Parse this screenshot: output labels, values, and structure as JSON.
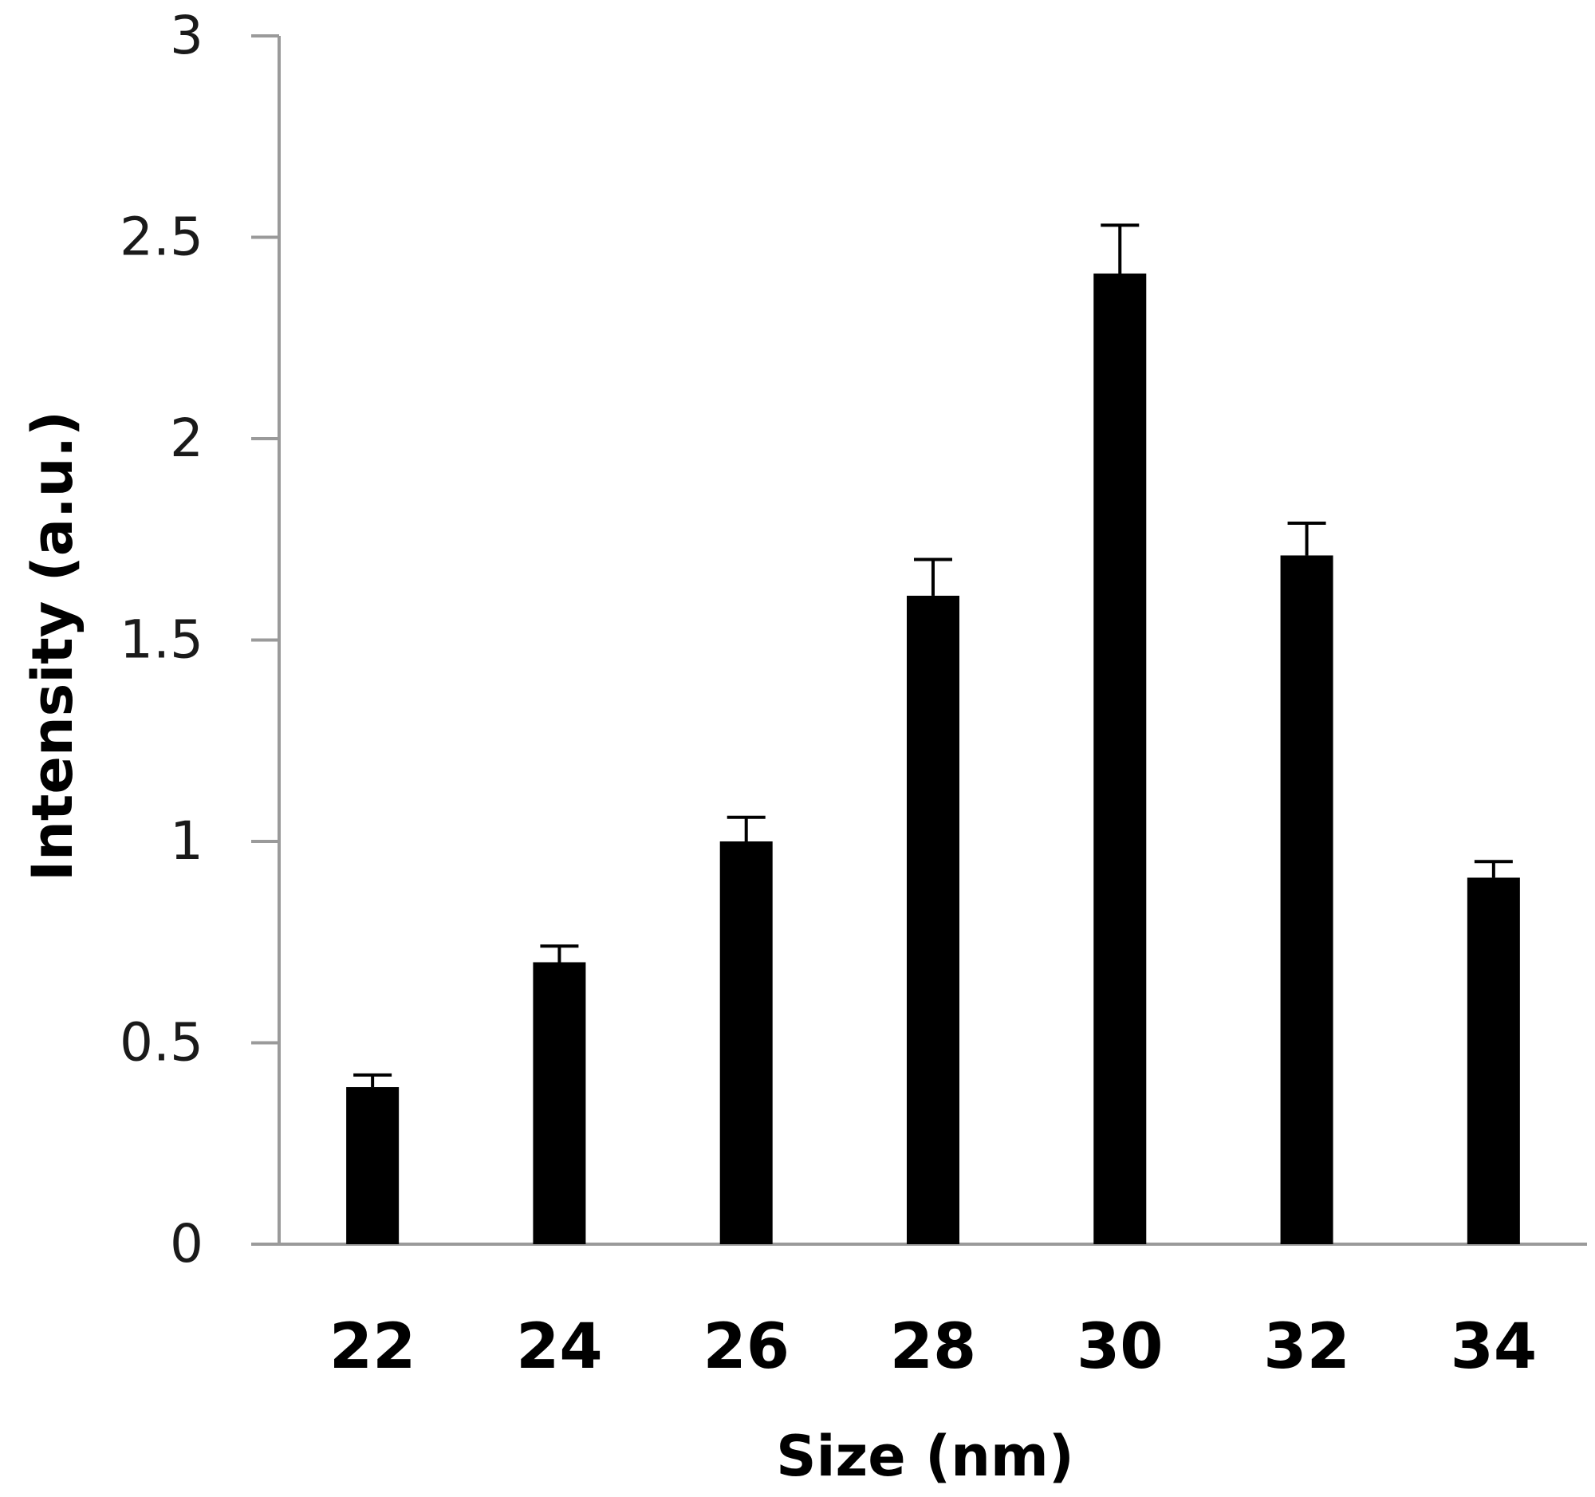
{
  "chart_data": {
    "type": "bar",
    "title": "",
    "xlabel": "Size (nm)",
    "ylabel": "Intensity (a.u.)",
    "categories": [
      "22",
      "24",
      "26",
      "28",
      "30",
      "32",
      "34"
    ],
    "series": [
      {
        "values": [
          0.39,
          0.7,
          1.0,
          1.61,
          2.41,
          1.71,
          0.91
        ],
        "error_plus": [
          0.03,
          0.04,
          0.06,
          0.09,
          0.12,
          0.08,
          0.04
        ]
      }
    ],
    "ylim": [
      0,
      3
    ],
    "yticks": [
      0,
      0.5,
      1,
      1.5,
      2,
      2.5,
      3
    ],
    "ytick_labels": [
      "0",
      "0.5",
      "1",
      "1.5",
      "2",
      "2.5",
      "3"
    ],
    "grid": false,
    "legend": "none",
    "colors": {
      "bar": "#000000",
      "axis": "#9a9a9a",
      "error_bar": "#000000"
    }
  }
}
